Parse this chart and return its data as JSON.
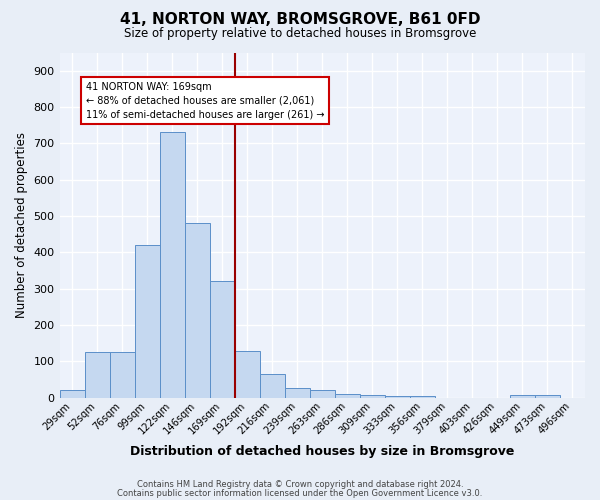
{
  "title": "41, NORTON WAY, BROMSGROVE, B61 0FD",
  "subtitle": "Size of property relative to detached houses in Bromsgrove",
  "xlabel": "Distribution of detached houses by size in Bromsgrove",
  "ylabel": "Number of detached properties",
  "footnote1": "Contains HM Land Registry data © Crown copyright and database right 2024.",
  "footnote2": "Contains public sector information licensed under the Open Government Licence v3.0.",
  "bar_labels": [
    "29sqm",
    "52sqm",
    "76sqm",
    "99sqm",
    "122sqm",
    "146sqm",
    "169sqm",
    "192sqm",
    "216sqm",
    "239sqm",
    "263sqm",
    "286sqm",
    "309sqm",
    "333sqm",
    "356sqm",
    "379sqm",
    "403sqm",
    "426sqm",
    "449sqm",
    "473sqm",
    "496sqm"
  ],
  "bar_values": [
    20,
    125,
    125,
    420,
    730,
    480,
    320,
    130,
    65,
    28,
    22,
    10,
    8,
    5,
    5,
    0,
    0,
    0,
    8,
    8,
    0
  ],
  "bar_color": "#c5d8f0",
  "bar_edge_color": "#5b8fc9",
  "property_label": "169sqm",
  "vline_color": "#990000",
  "annotation_line1": "41 NORTON WAY: 169sqm",
  "annotation_line2": "← 88% of detached houses are smaller (2,061)",
  "annotation_line3": "11% of semi-detached houses are larger (261) →",
  "annotation_box_color": "#ffffff",
  "annotation_box_edge": "#cc0000",
  "ylim": [
    0,
    950
  ],
  "yticks": [
    0,
    100,
    200,
    300,
    400,
    500,
    600,
    700,
    800,
    900
  ],
  "bg_color": "#e8eef7",
  "plot_bg_color": "#edf2fb",
  "grid_color": "#ffffff"
}
